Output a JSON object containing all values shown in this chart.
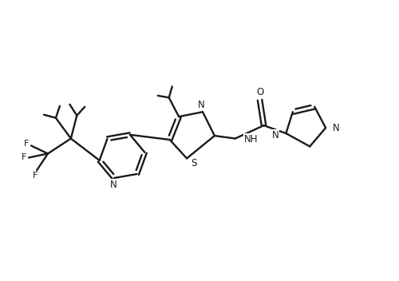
{
  "background_color": "#ffffff",
  "line_color": "#1a1a1a",
  "line_width": 1.7,
  "fig_width": 5.0,
  "fig_height": 3.52,
  "dpi": 100,
  "xlim": [
    0,
    10
  ],
  "ylim": [
    0,
    7
  ]
}
